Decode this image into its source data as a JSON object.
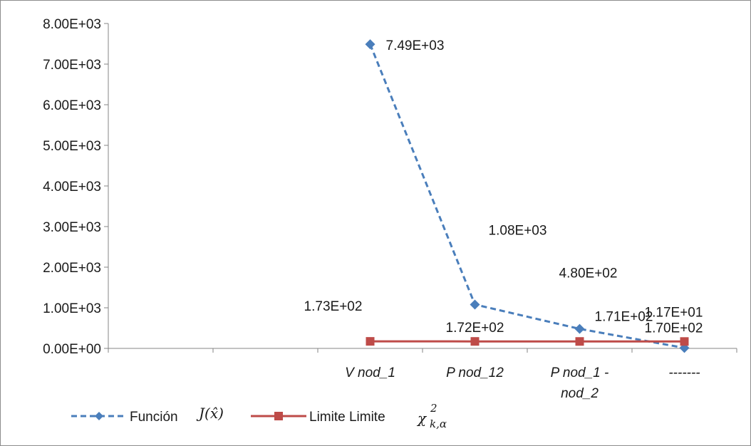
{
  "chart_data": {
    "type": "line",
    "categories": [
      "",
      "",
      "V nod_1",
      "P nod_12",
      "P nod_1 - nod_2",
      "-------"
    ],
    "ylim": [
      0,
      8000
    ],
    "yticks": [
      "0.00E+00",
      "1.00E+03",
      "2.00E+03",
      "3.00E+03",
      "4.00E+03",
      "5.00E+03",
      "6.00E+03",
      "7.00E+03",
      "8.00E+03"
    ],
    "grid": false,
    "legend_position": "bottom",
    "series": [
      {
        "name": "Función",
        "legend_math": "J(x̂)",
        "color": "#4a7ebb",
        "style": "dashed",
        "marker": "diamond",
        "values": [
          null,
          null,
          7490,
          1080,
          480,
          11.7
        ],
        "labels": [
          "",
          "",
          "7.49E+03",
          "1.08E+03",
          "4.80E+02",
          "1.17E+01"
        ]
      },
      {
        "name": "Limite Limite",
        "legend_math": "χ",
        "legend_math_sub": "k,α",
        "legend_math_sup": "2",
        "color": "#be4b48",
        "style": "solid",
        "marker": "square",
        "values": [
          null,
          null,
          173,
          172,
          171,
          170
        ],
        "labels": [
          "",
          "",
          "1.73E+02",
          "1.72E+02",
          "1.71E+02",
          "1.70E+02"
        ]
      }
    ]
  }
}
